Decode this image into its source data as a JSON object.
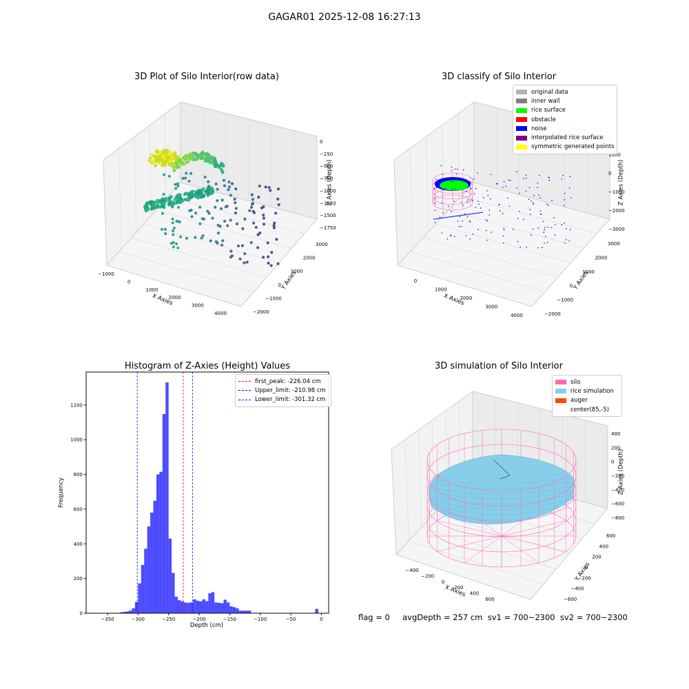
{
  "figure": {
    "suptitle": "GAGAR01 2025-12-08 16:27:13",
    "status_line": "flag = 0     avgDepth = 257 cm  sv1 = 700~2300  sv2 = 700~2300"
  },
  "colors": {
    "original": "#b3b3b3",
    "inner_wall": "#808080",
    "rice_surface": "#00ff00",
    "obstacle": "#ff0000",
    "noise": "#0000ff",
    "interp": "#800080",
    "sym": "#ffff00",
    "silo": "#ff69b4",
    "rice_sim": "#87ceeb",
    "auger": "#ff4500",
    "hist_bar": "#0000ff"
  },
  "chart_data": [
    {
      "type": "scatter",
      "subtype": "3d",
      "title": "3D Plot of Silo Interior(row data)",
      "xlabel": "X Axies",
      "ylabel": "Y Axies",
      "zlabel": "Z Axies (Depth)",
      "xticks": [
        "−1000",
        "0",
        "1000",
        "2000",
        "3000",
        "4000"
      ],
      "yticks": [
        "−2000",
        "−1000",
        "0",
        "1000",
        "2000",
        "3000"
      ],
      "zticks": [
        "0",
        "−250",
        "−500",
        "−750",
        "−1000",
        "−1250",
        "−1500",
        "−1750"
      ],
      "colormap": "viridis"
    },
    {
      "type": "scatter",
      "subtype": "3d",
      "title": "3D classify of Silo Interior",
      "xlabel": "X Axies",
      "ylabel": "Y Axies",
      "zlabel": "Z Axies (Depth)",
      "xticks": [
        "0",
        "1000",
        "2000",
        "3000",
        "4000"
      ],
      "yticks": [
        "−2000",
        "−1000",
        "0",
        "1000",
        "2000",
        "3000"
      ],
      "zticks": [
        "1000",
        "0",
        "−1000",
        "−2000",
        "−3000"
      ],
      "legend": [
        "original data",
        "inner wall",
        "rice surface",
        "obstacle",
        "noise",
        "interpolated rice surface",
        "symmetric generated points"
      ],
      "legend_position": "upper right"
    },
    {
      "type": "bar",
      "subtype": "histogram",
      "title": "Histogram of Z-Axies (Height) Values",
      "xlabel": "Depth (cm)",
      "ylabel": "Frequency",
      "xlim": [
        -385,
        12
      ],
      "ylim": [
        0,
        1390
      ],
      "xticks": [
        -350,
        -300,
        -250,
        -200,
        -150,
        -100,
        -50,
        0
      ],
      "yticks": [
        0,
        200,
        400,
        600,
        800,
        1000,
        1200
      ],
      "bin_width": 5,
      "bins": [
        [
          -375,
          2
        ],
        [
          -330,
          5
        ],
        [
          -325,
          8
        ],
        [
          -320,
          10
        ],
        [
          -315,
          15
        ],
        [
          -310,
          28
        ],
        [
          -305,
          65
        ],
        [
          -300,
          172
        ],
        [
          -295,
          278
        ],
        [
          -290,
          372
        ],
        [
          -285,
          500
        ],
        [
          -280,
          580
        ],
        [
          -275,
          648
        ],
        [
          -270,
          800
        ],
        [
          -265,
          815
        ],
        [
          -260,
          1148
        ],
        [
          -255,
          1330
        ],
        [
          -250,
          430
        ],
        [
          -245,
          232
        ],
        [
          -240,
          95
        ],
        [
          -235,
          75
        ],
        [
          -230,
          68
        ],
        [
          -225,
          62
        ],
        [
          -220,
          60
        ],
        [
          -215,
          62
        ],
        [
          -210,
          80
        ],
        [
          -205,
          72
        ],
        [
          -200,
          68
        ],
        [
          -195,
          80
        ],
        [
          -190,
          70
        ],
        [
          -185,
          115
        ],
        [
          -180,
          122
        ],
        [
          -175,
          62
        ],
        [
          -170,
          60
        ],
        [
          -165,
          58
        ],
        [
          -160,
          78
        ],
        [
          -155,
          62
        ],
        [
          -150,
          40
        ],
        [
          -145,
          35
        ],
        [
          -140,
          28
        ],
        [
          -135,
          15
        ],
        [
          -130,
          15
        ],
        [
          -125,
          15
        ],
        [
          -120,
          15
        ],
        [
          -110,
          2
        ],
        [
          -10,
          25
        ]
      ],
      "vlines": [
        {
          "label": "first_peak: -226.04 cm",
          "value": -226.04,
          "color": "#ff0000"
        },
        {
          "label": "Upper_limit: -210.98 cm",
          "value": -210.98,
          "color": "#0000ff"
        },
        {
          "label": "Lower_limit: -301.32 cm",
          "value": -301.32,
          "color": "#0000ff"
        }
      ],
      "legend_position": "upper right"
    },
    {
      "type": "scatter",
      "subtype": "3d-surface",
      "title": "3D simulation of Silo Interior",
      "xlabel": "X Axies",
      "ylabel": "Y Axies",
      "zlabel": "Z Axies (Depth)",
      "xticks": [
        "−400",
        "−200",
        "0",
        "200",
        "400",
        "600"
      ],
      "yticks": [
        "−600",
        "−400",
        "−200",
        "0",
        "200",
        "400",
        "600"
      ],
      "zticks": [
        "400",
        "200",
        "0",
        "−200",
        "−400",
        "−600",
        "−800"
      ],
      "legend": [
        "silo",
        "rice simulation",
        "auger",
        "center(85,-5)"
      ],
      "legend_position": "upper right"
    }
  ]
}
